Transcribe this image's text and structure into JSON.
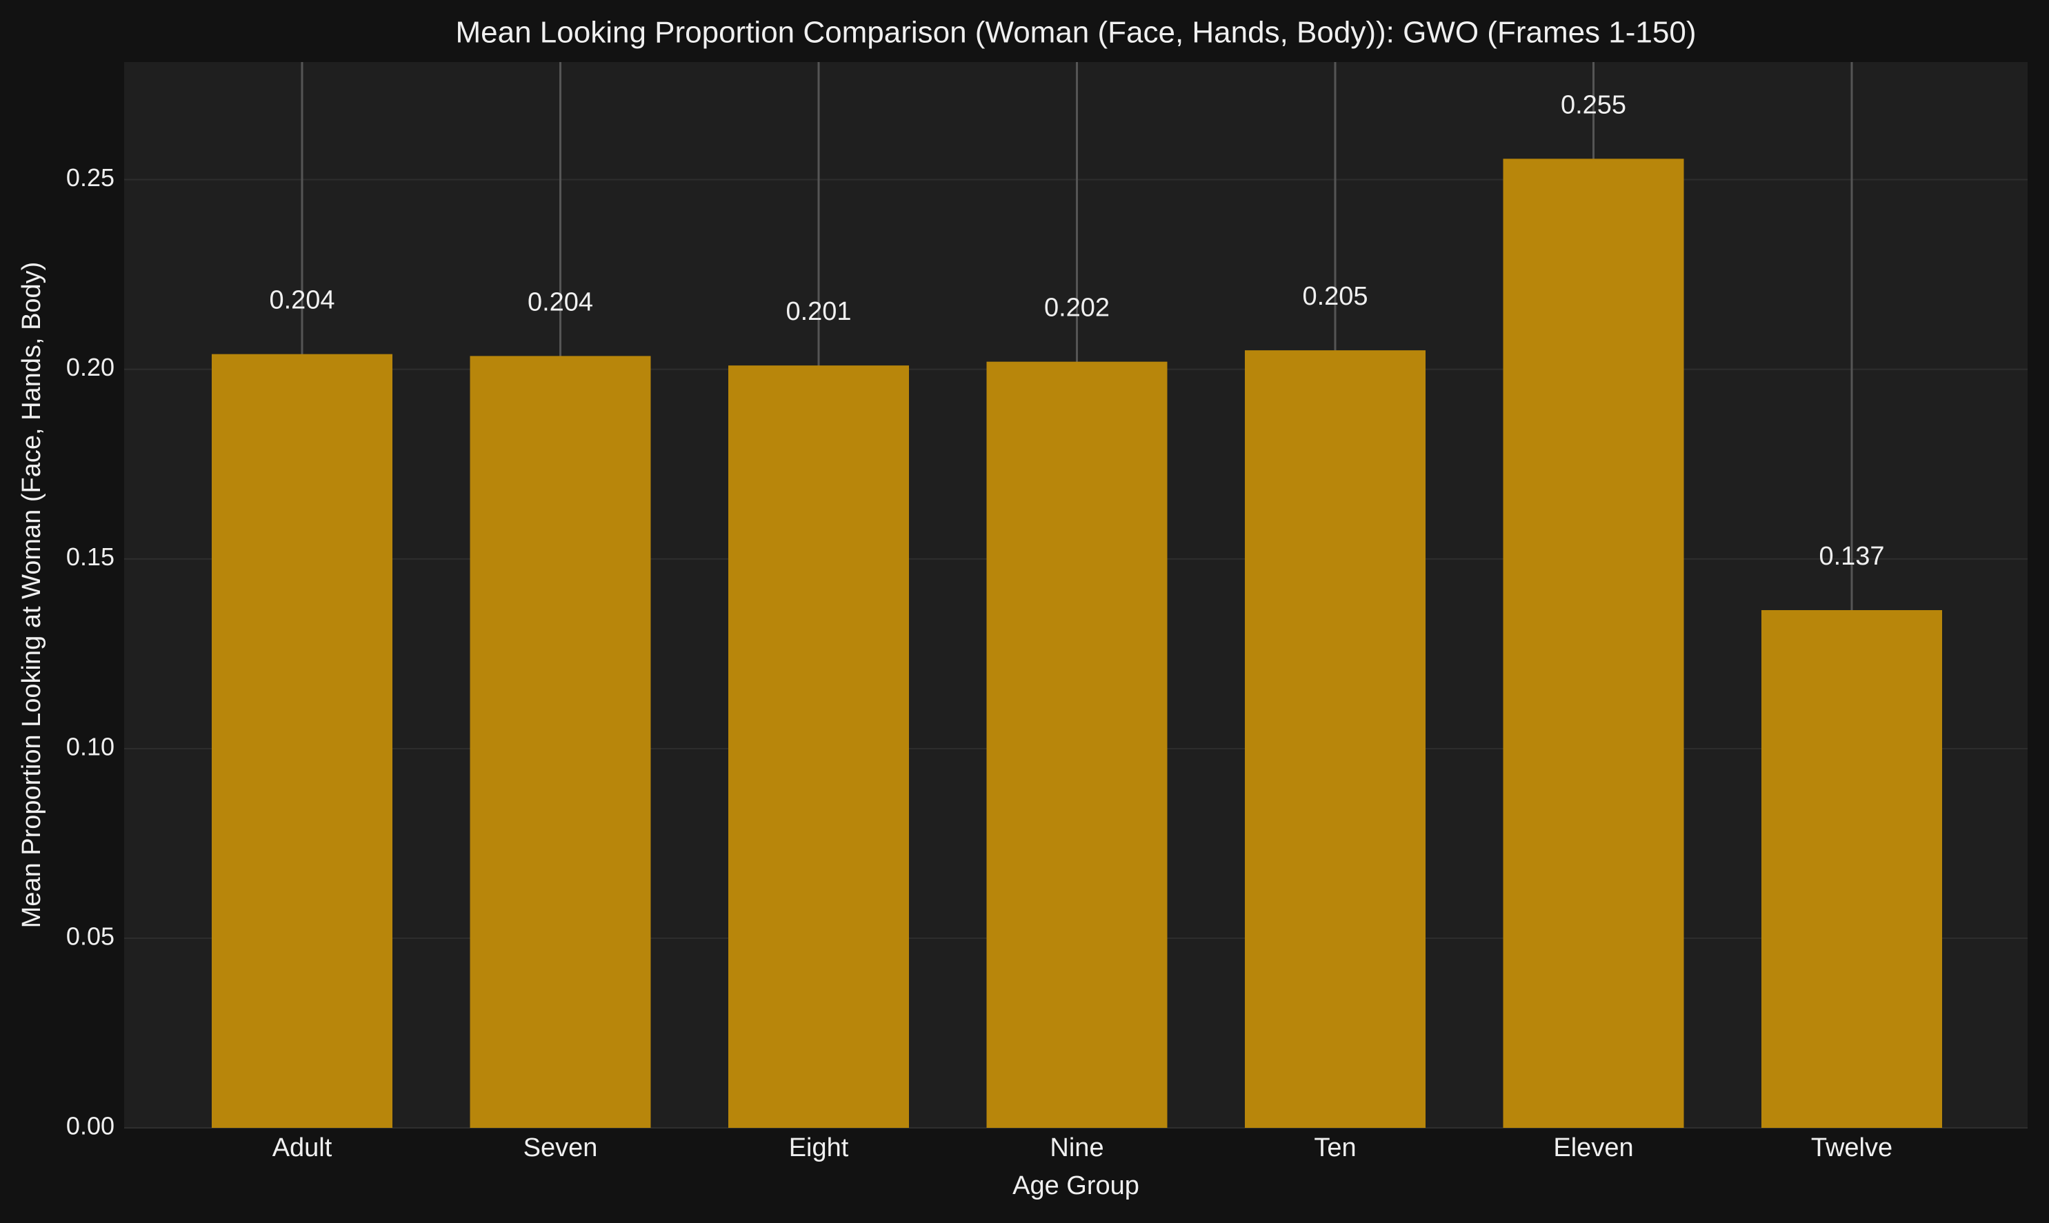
{
  "chart_data": {
    "type": "bar",
    "title": "Mean Looking Proportion Comparison (Woman (Face, Hands, Body)): GWO (Frames 1-150)",
    "xlabel": "Age Group",
    "ylabel": "Mean Proportion Looking at Woman (Face, Hands, Body)",
    "categories": [
      "Adult",
      "Seven",
      "Eight",
      "Nine",
      "Ten",
      "Eleven",
      "Twelve"
    ],
    "values": [
      0.204,
      0.2035,
      0.201,
      0.202,
      0.205,
      0.2555,
      0.1365
    ],
    "value_labels": [
      "0.204",
      "0.204",
      "0.201",
      "0.202",
      "0.205",
      "0.255",
      "0.137"
    ],
    "ylim": [
      0,
      0.281
    ],
    "yticks": [
      0.0,
      0.05,
      0.1,
      0.15,
      0.2,
      0.25
    ],
    "ytick_labels": [
      "0.00",
      "0.05",
      "0.10",
      "0.15",
      "0.20",
      "0.25"
    ],
    "grid": true,
    "error_bars": true,
    "colors": {
      "figure_bg": "#121212",
      "plot_bg": "#1f1f1f",
      "bar": "#b8860b",
      "grid": "#2e2e2e",
      "error_bar": "#555555",
      "text": "#f0f0f0"
    }
  }
}
